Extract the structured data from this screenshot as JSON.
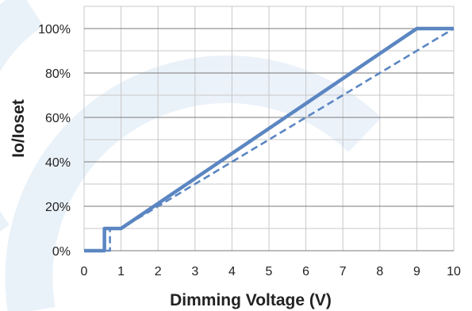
{
  "chart_data": {
    "type": "line",
    "title": "",
    "xlabel": "Dimming Voltage (V)",
    "ylabel": "Io/Ioset",
    "xlim": [
      0,
      10
    ],
    "ylim": [
      0,
      100
    ],
    "x_ticks": [
      "0",
      "1",
      "2",
      "3",
      "4",
      "5",
      "6",
      "7",
      "8",
      "9",
      "10"
    ],
    "y_ticks": [
      "0%",
      "20%",
      "40%",
      "60%",
      "80%",
      "100%"
    ],
    "grid": true,
    "legend": "none",
    "series": [
      {
        "style": "solid",
        "color": "#5b86c2",
        "x": [
          0,
          0.55,
          0.55,
          1.0,
          9.0,
          10.0
        ],
        "y": [
          0,
          0,
          10,
          10,
          100,
          100
        ]
      },
      {
        "style": "dashed",
        "color": "#5b86c2",
        "x": [
          0,
          0.7,
          0.7,
          1.0,
          10.0
        ],
        "y": [
          0,
          0,
          10,
          10,
          100
        ]
      }
    ]
  }
}
